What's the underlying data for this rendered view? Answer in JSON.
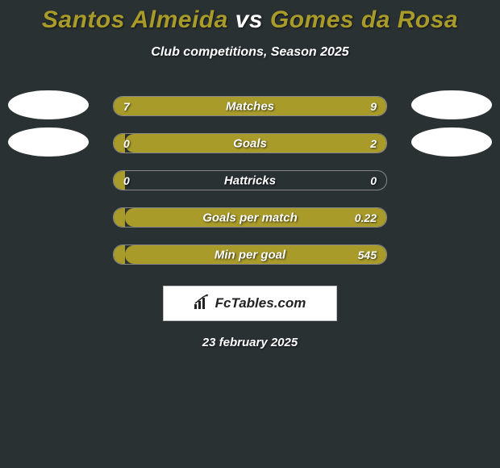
{
  "title": {
    "player1": "Santos Almeida",
    "vs": " vs ",
    "player2": "Gomes da Rosa",
    "color1": "#a89b2a",
    "colorVs": "#ffffff",
    "color2": "#a89b2a"
  },
  "subtitle": "Club competitions, Season 2025",
  "chart": {
    "track_border_color": "#888888",
    "track_bg": "#2a3133",
    "color_left": "#a89b2a",
    "color_right": "#a89b2a",
    "label_color": "#ffffff",
    "value_color": "#ffffff",
    "rows": [
      {
        "label": "Matches",
        "left_value": "7",
        "right_value": "9",
        "left_pct": 42,
        "right_pct": 58,
        "show_avatar_left": true,
        "show_avatar_right": true
      },
      {
        "label": "Goals",
        "left_value": "0",
        "right_value": "2",
        "left_pct": 4,
        "right_pct": 96,
        "show_avatar_left": true,
        "show_avatar_right": true
      },
      {
        "label": "Hattricks",
        "left_value": "0",
        "right_value": "0",
        "left_pct": 4,
        "right_pct": 0,
        "show_avatar_left": false,
        "show_avatar_right": false
      },
      {
        "label": "Goals per match",
        "left_value": "",
        "right_value": "0.22",
        "left_pct": 4,
        "right_pct": 96,
        "show_avatar_left": false,
        "show_avatar_right": false
      },
      {
        "label": "Min per goal",
        "left_value": "",
        "right_value": "545",
        "left_pct": 4,
        "right_pct": 96,
        "show_avatar_left": false,
        "show_avatar_right": false
      }
    ]
  },
  "logo_text": "FcTables.com",
  "footer_date": "23 february 2025",
  "background_color": "#2a3133",
  "avatar_bg": "#ffffff"
}
